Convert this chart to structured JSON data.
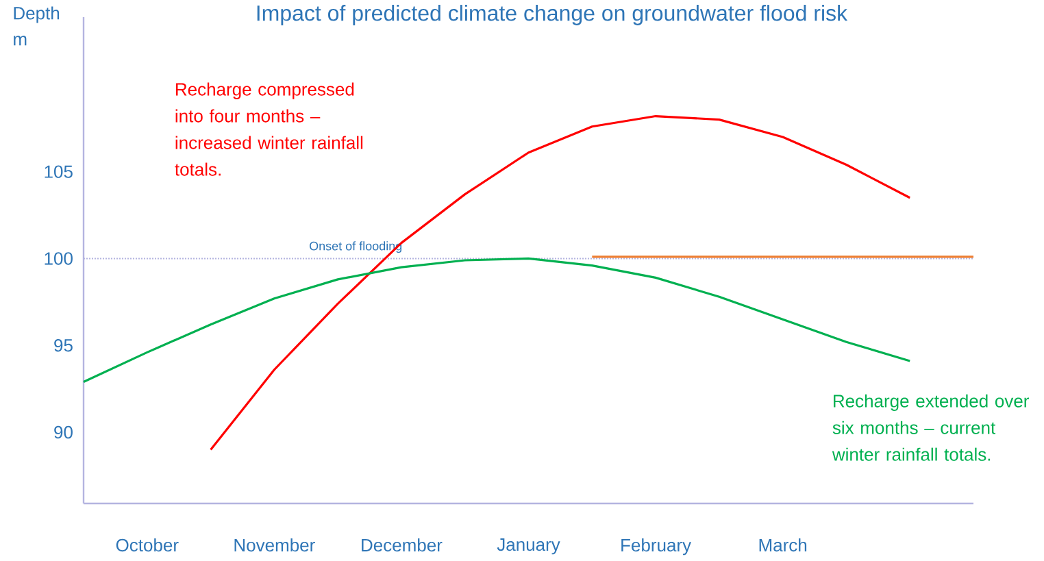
{
  "chart_data": {
    "type": "line",
    "title": "Impact of predicted climate change on groundwater flood risk",
    "ylabel": "Depth m",
    "categories": [
      null,
      "October",
      null,
      "November",
      null,
      "December",
      null,
      "January",
      null,
      "February",
      null,
      "March",
      null,
      null,
      null
    ],
    "ylim": [
      85.9,
      113.9
    ],
    "yticks": [
      90,
      95,
      100,
      105
    ],
    "marker": "none",
    "series": [
      {
        "color": "#ff0000",
        "values": [
          null,
          null,
          89.0,
          93.6,
          97.4,
          100.9,
          103.7,
          106.1,
          107.6,
          108.2,
          108.0,
          107.0,
          105.4,
          103.5,
          null
        ]
      },
      {
        "color": "#00b050",
        "values": [
          92.9,
          94.6,
          96.2,
          97.7,
          98.8,
          99.5,
          99.9,
          100.0,
          99.6,
          98.9,
          97.8,
          96.5,
          95.2,
          94.1,
          null
        ]
      },
      {
        "color": "#ed7d31",
        "values": [
          null,
          null,
          null,
          null,
          null,
          null,
          null,
          null,
          100.1,
          100.1,
          100.1,
          100.1,
          100.1,
          100.1,
          100.1
        ]
      }
    ],
    "ref_lines": [
      {
        "axis": "y",
        "value": 100,
        "label": "Onset of flooding",
        "color": "#b4b4e0",
        "line_style": "dotted"
      }
    ],
    "annotations": [
      "Recharge compressed into four months – increased winter rainfall totals.",
      "Recharge extended over six months – current winter rainfall totals."
    ]
  }
}
